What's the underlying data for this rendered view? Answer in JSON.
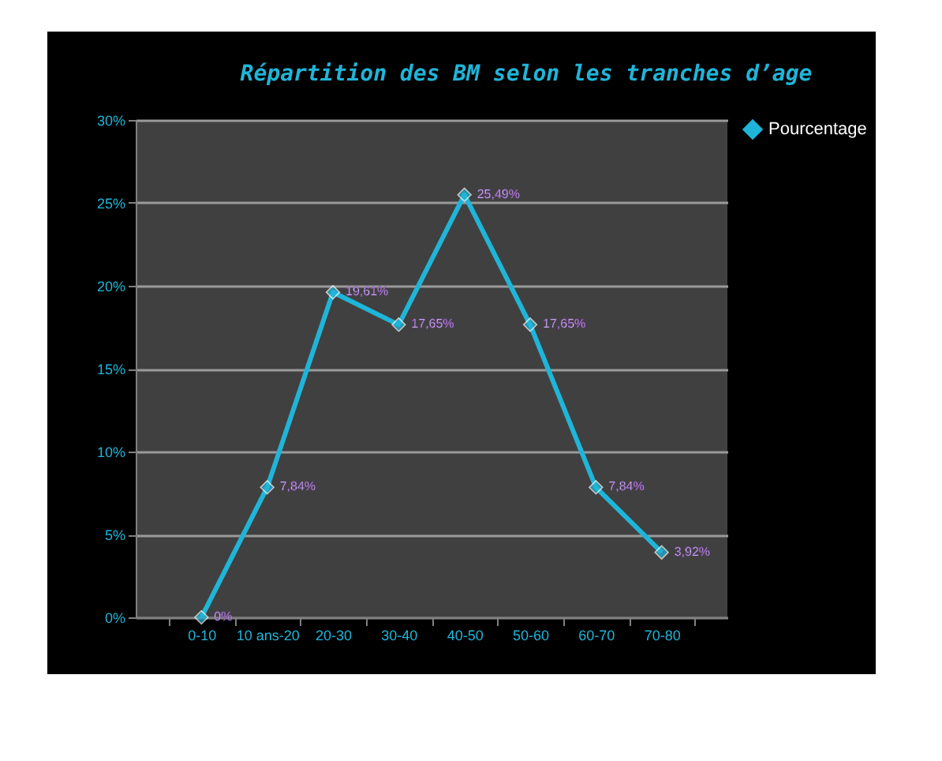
{
  "chart_data": {
    "type": "line",
    "title": "Répartition des BM selon les tranches d’age",
    "categories": [
      "0-10",
      "10 ans-20",
      "20-30",
      "30-40",
      "40-50",
      "50-60",
      "60-70",
      "70-80"
    ],
    "series": [
      {
        "name": "Pourcentage",
        "color": "#1fb5d8",
        "values": [
          0,
          7.84,
          19.61,
          17.65,
          25.49,
          17.65,
          7.84,
          3.92
        ],
        "value_labels": [
          "0%",
          "7,84%",
          "19,61%",
          "17,65%",
          "25,49%",
          "17,65%",
          "7,84%",
          "3,92%"
        ]
      }
    ],
    "ylim": [
      0,
      30
    ],
    "yticks": [
      {
        "value": 0,
        "label": "0%"
      },
      {
        "value": 5,
        "label": "5%"
      },
      {
        "value": 10,
        "label": "10%"
      },
      {
        "value": 15,
        "label": "15%"
      },
      {
        "value": 20,
        "label": "20%"
      },
      {
        "value": 25,
        "label": "25%"
      },
      {
        "value": 30,
        "label": "30%"
      }
    ],
    "grid": "y",
    "legend": "right",
    "marker": "diamond",
    "line_style": "solid"
  }
}
